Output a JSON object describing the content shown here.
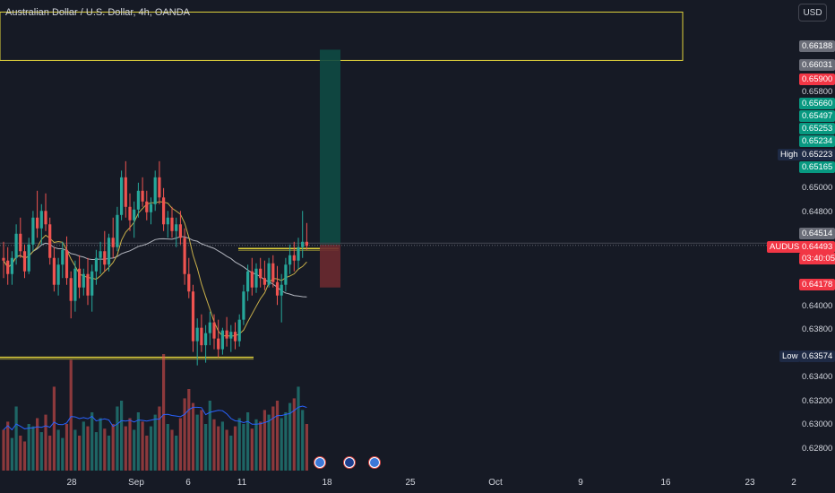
{
  "header": {
    "title": "Australian Dollar / U.S. Dollar, 4h, OANDA",
    "currency": "USD"
  },
  "price_axis": {
    "labels": [
      "0.65800",
      "0.65000",
      "0.64800",
      "0.64000",
      "0.63800",
      "0.63400",
      "0.63200",
      "0.63000",
      "0.62800"
    ]
  },
  "price_tags": [
    {
      "value": "0.66188",
      "bg": "#6a6d78",
      "color": "#ffffff"
    },
    {
      "value": "0.66031",
      "bg": "#6a6d78",
      "color": "#ffffff"
    },
    {
      "value": "0.65900",
      "bg": "#f23645",
      "color": "#ffffff"
    },
    {
      "value": "0.65660",
      "bg": "#089981",
      "color": "#ffffff"
    },
    {
      "value": "0.65497",
      "bg": "#089981",
      "color": "#ffffff"
    },
    {
      "value": "0.65253",
      "bg": "#089981",
      "color": "#ffffff"
    },
    {
      "value": "0.65234",
      "bg": "#089981",
      "color": "#ffffff"
    },
    {
      "value": "0.65223",
      "bg": "#1e2a45",
      "color": "#ffffff"
    },
    {
      "value": "0.65165",
      "bg": "#089981",
      "color": "#ffffff"
    },
    {
      "value": "0.64514",
      "bg": "#6a6d78",
      "color": "#ffffff"
    },
    {
      "value": "0.64493",
      "bg": "#f23645",
      "color": "#ffffff"
    },
    {
      "value": "03:40:05",
      "bg": "#f23645",
      "color": "#ffffff"
    },
    {
      "value": "0.64178",
      "bg": "#f23645",
      "color": "#ffffff"
    },
    {
      "value": "0.63574",
      "bg": "#1e2a45",
      "color": "#ffffff"
    }
  ],
  "side_labels": {
    "high": "High",
    "low": "Low",
    "symbol": "AUDUSD"
  },
  "time_axis": {
    "labels": [
      "28",
      "Sep",
      "6",
      "11",
      "18",
      "25",
      "Oct",
      "9",
      "16",
      "23",
      "2"
    ]
  },
  "events": [
    {
      "name": "us-flag-event-icon"
    },
    {
      "name": "au-flag-event-icon"
    },
    {
      "name": "us-flag-event-icon"
    }
  ],
  "colors": {
    "background": "#161a25",
    "bull": "#26a69a",
    "bear": "#ef5350",
    "zone": "#e0d23c",
    "ma_fast": "#c9b04a",
    "ma_slow": "#b2b5be"
  },
  "chart_data": {
    "type": "candlestick",
    "symbol": "AUDUSD",
    "interval": "4h",
    "ylim": [
      0.6265,
      0.6632
    ],
    "last_price": 0.64493,
    "countdown": "03:40:05",
    "session_high": 0.65223,
    "session_low": 0.63574,
    "ohlc": [
      [
        0.644,
        0.6452,
        0.6425,
        0.6438
      ],
      [
        0.6438,
        0.6448,
        0.642,
        0.6428
      ],
      [
        0.6428,
        0.6445,
        0.642,
        0.644
      ],
      [
        0.644,
        0.6465,
        0.6435,
        0.6458
      ],
      [
        0.6458,
        0.647,
        0.644,
        0.6445
      ],
      [
        0.6445,
        0.645,
        0.6425,
        0.643
      ],
      [
        0.643,
        0.6455,
        0.6428,
        0.645
      ],
      [
        0.645,
        0.6475,
        0.6445,
        0.647
      ],
      [
        0.647,
        0.649,
        0.6455,
        0.6462
      ],
      [
        0.6462,
        0.648,
        0.645,
        0.6475
      ],
      [
        0.6475,
        0.6488,
        0.646,
        0.6465
      ],
      [
        0.6465,
        0.647,
        0.6435,
        0.644
      ],
      [
        0.644,
        0.6448,
        0.6415,
        0.642
      ],
      [
        0.642,
        0.644,
        0.6412,
        0.6435
      ],
      [
        0.6435,
        0.6452,
        0.6425,
        0.6446
      ],
      [
        0.6446,
        0.6456,
        0.642,
        0.6425
      ],
      [
        0.6425,
        0.643,
        0.6395,
        0.6408
      ],
      [
        0.6408,
        0.6438,
        0.64,
        0.6432
      ],
      [
        0.6432,
        0.6442,
        0.641,
        0.6418
      ],
      [
        0.6418,
        0.6432,
        0.6412,
        0.6428
      ],
      [
        0.6428,
        0.644,
        0.6405,
        0.6412
      ],
      [
        0.6412,
        0.6435,
        0.64,
        0.643
      ],
      [
        0.643,
        0.6446,
        0.642,
        0.644
      ],
      [
        0.644,
        0.6452,
        0.6428,
        0.6445
      ],
      [
        0.6445,
        0.646,
        0.643,
        0.6435
      ],
      [
        0.6435,
        0.6458,
        0.643,
        0.6455
      ],
      [
        0.6455,
        0.647,
        0.644,
        0.6448
      ],
      [
        0.6448,
        0.6478,
        0.6445,
        0.6472
      ],
      [
        0.6472,
        0.6505,
        0.6468,
        0.65
      ],
      [
        0.65,
        0.6512,
        0.647,
        0.6478
      ],
      [
        0.6478,
        0.6488,
        0.646,
        0.6468
      ],
      [
        0.6468,
        0.6482,
        0.6455,
        0.6476
      ],
      [
        0.6476,
        0.6496,
        0.647,
        0.649
      ],
      [
        0.649,
        0.65,
        0.6478,
        0.6482
      ],
      [
        0.6482,
        0.649,
        0.6468,
        0.6474
      ],
      [
        0.6474,
        0.6485,
        0.6465,
        0.648
      ],
      [
        0.648,
        0.6505,
        0.6475,
        0.65
      ],
      [
        0.65,
        0.6512,
        0.648,
        0.6485
      ],
      [
        0.6485,
        0.6492,
        0.646,
        0.6465
      ],
      [
        0.6465,
        0.6475,
        0.6455,
        0.647
      ],
      [
        0.647,
        0.6478,
        0.6455,
        0.646
      ],
      [
        0.646,
        0.647,
        0.6448,
        0.6465
      ],
      [
        0.6465,
        0.6475,
        0.645,
        0.6455
      ],
      [
        0.6455,
        0.6462,
        0.642,
        0.6428
      ],
      [
        0.6428,
        0.644,
        0.641,
        0.6415
      ],
      [
        0.6415,
        0.642,
        0.637,
        0.6378
      ],
      [
        0.6378,
        0.6395,
        0.636,
        0.6388
      ],
      [
        0.6388,
        0.6398,
        0.637,
        0.6375
      ],
      [
        0.6375,
        0.639,
        0.6362,
        0.6384
      ],
      [
        0.6384,
        0.64,
        0.6375,
        0.6392
      ],
      [
        0.6392,
        0.6398,
        0.6372,
        0.638
      ],
      [
        0.638,
        0.6394,
        0.6366,
        0.6372
      ],
      [
        0.6372,
        0.6388,
        0.6368,
        0.6386
      ],
      [
        0.6386,
        0.6396,
        0.6374,
        0.638
      ],
      [
        0.638,
        0.639,
        0.637,
        0.6385
      ],
      [
        0.6385,
        0.6392,
        0.6372,
        0.6378
      ],
      [
        0.6378,
        0.6398,
        0.6374,
        0.6394
      ],
      [
        0.6394,
        0.642,
        0.639,
        0.6415
      ],
      [
        0.6415,
        0.6435,
        0.6408,
        0.643
      ],
      [
        0.643,
        0.644,
        0.6412,
        0.6418
      ],
      [
        0.6418,
        0.6436,
        0.6414,
        0.6432
      ],
      [
        0.6432,
        0.644,
        0.6418,
        0.6425
      ],
      [
        0.6425,
        0.6438,
        0.6416,
        0.642
      ],
      [
        0.642,
        0.644,
        0.6418,
        0.6436
      ],
      [
        0.6436,
        0.6442,
        0.6418,
        0.6422
      ],
      [
        0.6422,
        0.6434,
        0.6405,
        0.6412
      ],
      [
        0.6412,
        0.6428,
        0.6392,
        0.642
      ],
      [
        0.642,
        0.644,
        0.6415,
        0.6435
      ],
      [
        0.6435,
        0.645,
        0.6428,
        0.6442
      ],
      [
        0.6442,
        0.6452,
        0.643,
        0.6438
      ],
      [
        0.6438,
        0.6455,
        0.6432,
        0.6448
      ],
      [
        0.6448,
        0.6475,
        0.644,
        0.6452
      ],
      [
        0.6452,
        0.6466,
        0.6446,
        0.6449
      ]
    ],
    "volume": [
      0.35,
      0.42,
      0.28,
      0.55,
      0.3,
      0.25,
      0.4,
      0.38,
      0.45,
      0.33,
      0.48,
      0.3,
      0.72,
      0.35,
      0.28,
      0.4,
      0.95,
      0.35,
      0.3,
      0.42,
      0.38,
      0.5,
      0.33,
      0.45,
      0.36,
      0.3,
      0.4,
      0.55,
      0.6,
      0.38,
      0.45,
      0.35,
      0.5,
      0.42,
      0.3,
      0.38,
      0.48,
      0.55,
      1.0,
      0.4,
      0.35,
      0.3,
      0.45,
      0.62,
      0.7,
      0.58,
      0.48,
      0.52,
      0.4,
      0.6,
      0.44,
      0.38,
      0.42,
      0.35,
      0.3,
      0.38,
      0.45,
      0.4,
      0.5,
      0.36,
      0.44,
      0.42,
      0.52,
      0.48,
      0.55,
      0.6,
      0.45,
      0.5,
      0.58,
      0.62,
      0.72,
      0.52,
      0.4
    ],
    "zones": [
      {
        "type": "rectangle",
        "from": 0.6587,
        "to": 0.6623
      },
      {
        "type": "horizontal",
        "level": 0.6447
      },
      {
        "type": "horizontal",
        "level": 0.6366
      }
    ],
    "position": {
      "entry": 0.645,
      "target": 0.6595,
      "stop": 0.6418
    }
  }
}
